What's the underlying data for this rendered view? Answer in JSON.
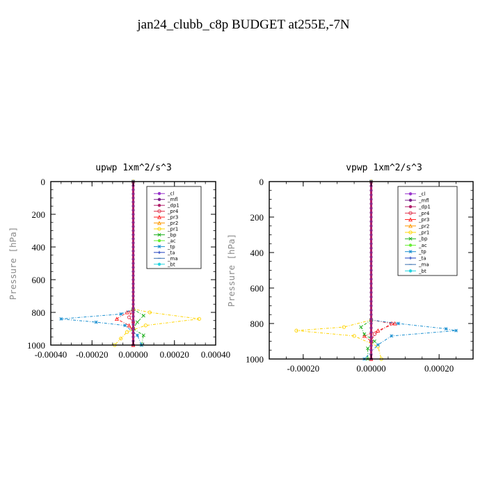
{
  "figure": {
    "title": "jan24_clubb_c8p  BUDGET at255E,-7N"
  },
  "legend_entries": [
    {
      "name": "_cl",
      "color": "#9933cc",
      "marker": "dot"
    },
    {
      "name": "_mfl",
      "color": "#7a1f8a",
      "marker": "dot"
    },
    {
      "name": "_dp1",
      "color": "#b0206a",
      "marker": "dot"
    },
    {
      "name": "_pr4",
      "color": "#e0304a",
      "marker": "circle"
    },
    {
      "name": "_pr3",
      "color": "#ff2020",
      "marker": "tri"
    },
    {
      "name": "_pr2",
      "color": "#ff9900",
      "marker": "tri"
    },
    {
      "name": "_pr1",
      "color": "#ffd400",
      "marker": "circle"
    },
    {
      "name": "_bp",
      "color": "#20b020",
      "marker": "x"
    },
    {
      "name": "_ac",
      "color": "#66ee33",
      "marker": "dot"
    },
    {
      "name": "_tp",
      "color": "#1a8fd0",
      "marker": "star"
    },
    {
      "name": "_ta",
      "color": "#1f3fbf",
      "marker": "plus"
    },
    {
      "name": "_ma",
      "color": "#3a6fb0",
      "marker": "dash"
    },
    {
      "name": "_bt",
      "color": "#22d4e0",
      "marker": "diamond"
    }
  ],
  "chart_data": [
    {
      "type": "line",
      "title": "upwp  1xm^2/s^3",
      "ylabel": "Pressure [hPa]",
      "xlabel": "",
      "xlim": [
        -0.0004,
        0.0004
      ],
      "ylim": [
        1000,
        0
      ],
      "xticks": [
        "-0.00040",
        "-0.00020",
        "0.00000",
        "0.00020",
        "0.00040"
      ],
      "xtick_values": [
        -0.0004,
        -0.0002,
        0,
        0.0002,
        0.0004
      ],
      "yticks": [
        "0",
        "200",
        "400",
        "600",
        "800",
        "1000"
      ],
      "ytick_values": [
        0,
        200,
        400,
        600,
        800,
        1000
      ],
      "legend_position": "top-right",
      "series": [
        {
          "name": "_cl",
          "color": "#9933cc",
          "x": [
            0,
            0,
            0,
            0,
            0,
            0
          ],
          "y": [
            0,
            200,
            400,
            600,
            800,
            1000
          ]
        },
        {
          "name": "_mfl",
          "color": "#7a1f8a",
          "x": [
            0,
            0,
            0,
            0,
            0,
            0
          ],
          "y": [
            0,
            200,
            400,
            600,
            800,
            1000
          ]
        },
        {
          "name": "_pr4",
          "color": "#e0304a",
          "x": [
            0,
            0,
            -1e-05,
            -2e-05,
            0,
            0,
            0
          ],
          "y": [
            0,
            780,
            800,
            830,
            860,
            900,
            1000
          ]
        },
        {
          "name": "_pr3",
          "color": "#ff2020",
          "x": [
            0,
            0,
            -3e-05,
            -8e-05,
            -2e-05,
            0,
            0
          ],
          "y": [
            0,
            780,
            800,
            840,
            880,
            920,
            1000
          ]
        },
        {
          "name": "_pr1",
          "color": "#ffd400",
          "x": [
            0,
            0,
            8e-05,
            0.00032,
            6e-05,
            -3e-05,
            -6e-05,
            -9e-05
          ],
          "y": [
            0,
            780,
            800,
            840,
            880,
            920,
            960,
            1000
          ]
        },
        {
          "name": "_bp",
          "color": "#20b020",
          "x": [
            0,
            0,
            5e-05,
            2e-05,
            0,
            5e-05,
            4e-05
          ],
          "y": [
            0,
            780,
            820,
            860,
            900,
            940,
            1000
          ]
        },
        {
          "name": "_tp",
          "color": "#1a8fd0",
          "x": [
            0,
            0,
            -6e-05,
            -0.00035,
            -0.00018,
            -4e-05,
            2e-05,
            4e-05
          ],
          "y": [
            0,
            780,
            810,
            840,
            860,
            880,
            940,
            1000
          ]
        },
        {
          "name": "_dp1",
          "color": "#b0206a",
          "x": [
            0,
            0,
            0,
            0,
            0,
            0
          ],
          "y": [
            0,
            200,
            400,
            600,
            800,
            1000
          ]
        }
      ]
    },
    {
      "type": "line",
      "title": "vpwp  1xm^2/s^3",
      "ylabel": "Pressure [hPa]",
      "xlabel": "",
      "xlim": [
        -0.0003,
        0.0003
      ],
      "ylim": [
        1000,
        0
      ],
      "xticks": [
        "-0.00020",
        "0.00000",
        "0.00020"
      ],
      "xtick_values": [
        -0.0002,
        0,
        0.0002
      ],
      "yticks": [
        "0",
        "200",
        "400",
        "600",
        "800",
        "1000"
      ],
      "ytick_values": [
        0,
        200,
        400,
        600,
        800,
        1000
      ],
      "legend_position": "top-right",
      "series": [
        {
          "name": "_cl",
          "color": "#9933cc",
          "x": [
            0,
            0,
            0,
            0,
            0,
            0
          ],
          "y": [
            0,
            200,
            400,
            600,
            800,
            1000
          ]
        },
        {
          "name": "_mfl",
          "color": "#7a1f8a",
          "x": [
            0,
            0,
            0,
            0,
            0,
            0
          ],
          "y": [
            0,
            200,
            400,
            600,
            800,
            1000
          ]
        },
        {
          "name": "_pr4",
          "color": "#e0304a",
          "x": [
            0,
            0,
            6e-05,
            1e-05,
            0,
            0
          ],
          "y": [
            0,
            780,
            800,
            860,
            900,
            1000
          ]
        },
        {
          "name": "_pr3",
          "color": "#ff2020",
          "x": [
            0,
            0,
            7e-05,
            2e-05,
            -2e-05,
            0,
            0
          ],
          "y": [
            0,
            780,
            800,
            840,
            870,
            900,
            1000
          ]
        },
        {
          "name": "_pr1",
          "color": "#ffd400",
          "x": [
            0,
            0,
            -8e-05,
            -0.00022,
            -5e-05,
            2e-05,
            3e-05
          ],
          "y": [
            0,
            780,
            820,
            840,
            870,
            930,
            1000
          ]
        },
        {
          "name": "_bp",
          "color": "#20b020",
          "x": [
            0,
            0,
            -3e-05,
            -2e-05,
            1e-05,
            -1e-05,
            -1e-05
          ],
          "y": [
            0,
            780,
            820,
            860,
            900,
            940,
            1000
          ]
        },
        {
          "name": "_tp",
          "color": "#1a8fd0",
          "x": [
            0,
            0,
            8e-05,
            0.00022,
            0.00025,
            6e-05,
            2e-05,
            -2e-05
          ],
          "y": [
            0,
            780,
            800,
            830,
            840,
            870,
            920,
            1000
          ]
        },
        {
          "name": "_dp1",
          "color": "#b0206a",
          "x": [
            0,
            0,
            0,
            0,
            0,
            0
          ],
          "y": [
            0,
            200,
            400,
            600,
            800,
            1000
          ]
        }
      ]
    }
  ]
}
